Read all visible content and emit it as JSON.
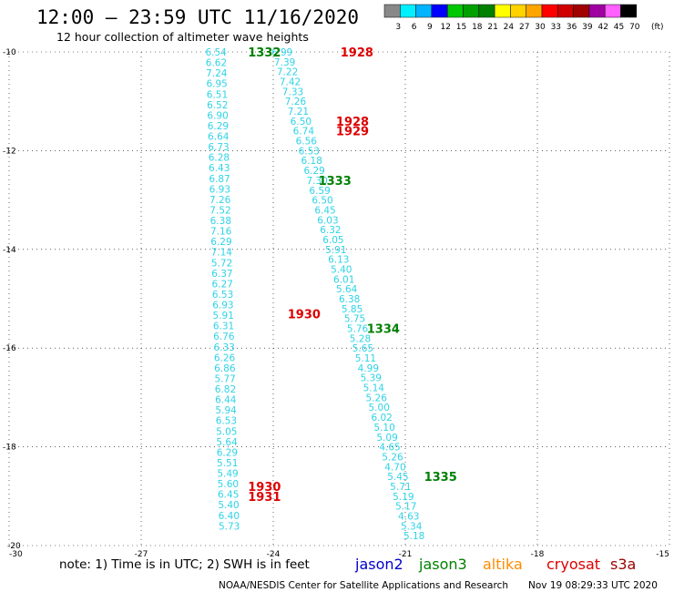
{
  "header": {
    "title": "12:00 – 23:59 UTC 11/16/2020",
    "subtitle": "12 hour collection of altimeter wave heights"
  },
  "color_scale": {
    "unit": "(ft)",
    "labels": [
      "3",
      "6",
      "9",
      "12",
      "15",
      "18",
      "21",
      "24",
      "27",
      "30",
      "33",
      "36",
      "39",
      "42",
      "45",
      "70"
    ],
    "colors": [
      "#888888",
      "#00f0ff",
      "#00b4ff",
      "#0000ff",
      "#00c800",
      "#00a000",
      "#008000",
      "#ffff00",
      "#ffd200",
      "#ffa500",
      "#ff0000",
      "#d00000",
      "#a00000",
      "#a000a0",
      "#ff60ff",
      "#000000"
    ]
  },
  "note": "note: 1) Time is in UTC; 2) SWH is in feet",
  "satellites": [
    {
      "name": "jason2",
      "color": "#0000cc"
    },
    {
      "name": "jason3",
      "color": "#008000"
    },
    {
      "name": "altika",
      "color": "#ff8c00"
    },
    {
      "name": "cryosat",
      "color": "#dd0000"
    },
    {
      "name": "s3a",
      "color": "#990000"
    }
  ],
  "footer": {
    "credit": "NOAA/NESDIS Center for Satellite Applications and Research",
    "timestamp": "Nov 19 08:29:33 UTC 2020"
  },
  "chart_data": {
    "type": "scatter",
    "title": "12:00 – 23:59 UTC 11/16/2020",
    "x_ticks": [
      "-30",
      "-27",
      "-24",
      "-21",
      "-18",
      "-15"
    ],
    "y_ticks": [
      "-10",
      "-12",
      "-14",
      "-16",
      "-18",
      "-20"
    ],
    "xlim": [
      -30,
      -15
    ],
    "ylim": [
      -20,
      -10
    ],
    "grid": true,
    "value_color": "#2fd3e6",
    "tracks": [
      {
        "lon_start": -25.3,
        "lat_start": -10.0,
        "lon_end": -25.0,
        "lat_end": -19.6,
        "values": [
          "6.54",
          "6.62",
          "7.24",
          "6.95",
          "6.51",
          "6.52",
          "6.90",
          "6.29",
          "6.64",
          "6.73",
          "6.28",
          "6.43",
          "6.87",
          "6.93",
          "7.26",
          "7.52",
          "6.38",
          "7.16",
          "6.29",
          "7.14",
          "5.72",
          "6.37",
          "6.27",
          "6.53",
          "6.93",
          "5.91",
          "6.31",
          "6.76",
          "6.33",
          "6.26",
          "6.86",
          "5.77",
          "6.82",
          "6.44",
          "5.94",
          "6.53",
          "5.05",
          "5.64",
          "6.29",
          "5.51",
          "5.49",
          "5.60",
          "6.45",
          "5.40",
          "6.40",
          "5.73"
        ]
      },
      {
        "lon_start": -23.8,
        "lat_start": -10.0,
        "lon_end": -20.8,
        "lat_end": -19.8,
        "values": [
          "6.99",
          "7.39",
          "7.22",
          "7.42",
          "7.33",
          "7.26",
          "7.21",
          "6.50",
          "6.74",
          "6.56",
          "6.53",
          "6.18",
          "6.29",
          "7.30",
          "6.59",
          "6.50",
          "6.45",
          "6.03",
          "6.32",
          "6.05",
          "5.91",
          "6.13",
          "5.40",
          "6.01",
          "5.64",
          "6.38",
          "5.85",
          "5.75",
          "5.76",
          "5.28",
          "5.65",
          "5.11",
          "4.99",
          "5.39",
          "5.14",
          "5.26",
          "5.00",
          "6.02",
          "5.10",
          "5.09",
          "4.65",
          "5.26",
          "4.70",
          "5.45",
          "5.71",
          "5.19",
          "5.17",
          "4.63",
          "5.34",
          "5.18"
        ]
      }
    ],
    "pass_labels": [
      {
        "text": "1332",
        "lon": -24.2,
        "lat": -10.0,
        "color": "#008000"
      },
      {
        "text": "1928",
        "lon": -22.1,
        "lat": -10.0,
        "color": "#dd0000"
      },
      {
        "text": "1928",
        "lon": -22.2,
        "lat": -11.4,
        "color": "#dd0000"
      },
      {
        "text": "1929",
        "lon": -22.2,
        "lat": -11.6,
        "color": "#dd0000"
      },
      {
        "text": "1333",
        "lon": -22.6,
        "lat": -12.6,
        "color": "#008000"
      },
      {
        "text": "1930",
        "lon": -23.3,
        "lat": -15.3,
        "color": "#dd0000"
      },
      {
        "text": "1334",
        "lon": -21.5,
        "lat": -15.6,
        "color": "#008000"
      },
      {
        "text": "1335",
        "lon": -20.2,
        "lat": -18.6,
        "color": "#008000"
      },
      {
        "text": "1930",
        "lon": -24.2,
        "lat": -18.8,
        "color": "#dd0000"
      },
      {
        "text": "1931",
        "lon": -24.2,
        "lat": -19.0,
        "color": "#dd0000"
      }
    ]
  }
}
